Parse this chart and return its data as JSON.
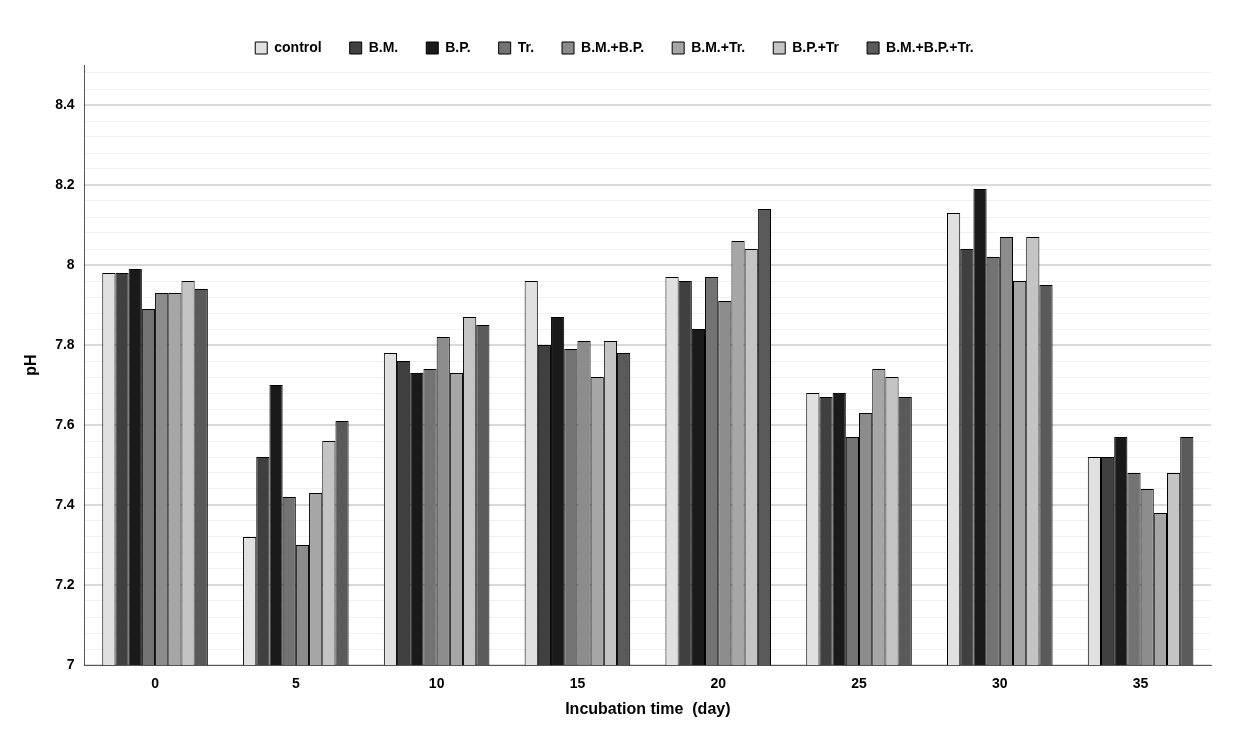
{
  "chart_data": {
    "type": "bar",
    "xlabel": "Incubation time  (day)",
    "ylabel": "pH",
    "categories": [
      "0",
      "5",
      "10",
      "15",
      "20",
      "25",
      "30",
      "35"
    ],
    "series": [
      {
        "name": "control",
        "color": "#e0e0e0",
        "values": [
          7.98,
          7.32,
          7.78,
          7.96,
          7.97,
          7.68,
          8.13,
          7.52
        ]
      },
      {
        "name": "B.M.",
        "color": "#404040",
        "values": [
          7.98,
          7.52,
          7.76,
          7.8,
          7.96,
          7.67,
          8.04,
          7.52
        ]
      },
      {
        "name": "B.P.",
        "color": "#1a1a1a",
        "values": [
          7.99,
          7.7,
          7.73,
          7.87,
          7.84,
          7.68,
          8.19,
          7.57
        ]
      },
      {
        "name": "Tr.",
        "color": "#737373",
        "values": [
          7.89,
          7.42,
          7.74,
          7.79,
          7.97,
          7.57,
          8.02,
          7.48
        ]
      },
      {
        "name": "B.M.+B.P.",
        "color": "#8c8c8c",
        "values": [
          7.93,
          7.3,
          7.82,
          7.81,
          7.91,
          7.63,
          8.07,
          7.44
        ]
      },
      {
        "name": "B.M.+Tr.",
        "color": "#a6a6a6",
        "values": [
          7.93,
          7.43,
          7.73,
          7.72,
          8.06,
          7.74,
          7.96,
          7.38
        ]
      },
      {
        "name": "B.P.+Tr",
        "color": "#c4c4c4",
        "values": [
          7.96,
          7.56,
          7.87,
          7.81,
          8.04,
          7.72,
          8.07,
          7.48
        ]
      },
      {
        "name": "B.M.+B.P.+Tr.",
        "color": "#5a5a5a",
        "values": [
          7.94,
          7.61,
          7.85,
          7.78,
          8.14,
          7.67,
          7.95,
          7.57
        ]
      }
    ],
    "ylim": [
      7,
      8.5
    ],
    "yticks": [
      7,
      {
        "value": 7.04,
        "label": null
      },
      {
        "value": 7.08,
        "label": null
      },
      {
        "value": 7.12,
        "label": null
      },
      {
        "value": 7.16,
        "label": null
      },
      7.2,
      {
        "value": 7.24,
        "label": null
      },
      {
        "value": 7.28,
        "label": null
      },
      {
        "value": 7.32,
        "label": null
      },
      {
        "value": 7.36,
        "label": null
      },
      7.4,
      {
        "value": 7.44,
        "label": null
      },
      {
        "value": 7.48,
        "label": null
      },
      {
        "value": 7.52,
        "label": null
      },
      {
        "value": 7.56,
        "label": null
      },
      7.6,
      {
        "value": 7.64,
        "label": null
      },
      {
        "value": 7.68,
        "label": null
      },
      {
        "value": 7.72,
        "label": null
      },
      {
        "value": 7.76,
        "label": null
      },
      7.8,
      {
        "value": 7.84,
        "label": null
      },
      {
        "value": 7.88,
        "label": null
      },
      {
        "value": 7.92,
        "label": null
      },
      {
        "value": 7.96,
        "label": null
      },
      8,
      {
        "value": 8.04,
        "label": null
      },
      {
        "value": 8.08,
        "label": null
      },
      {
        "value": 8.12,
        "label": null
      },
      {
        "value": 8.16,
        "label": null
      },
      8.2,
      {
        "value": 8.24,
        "label": null
      },
      {
        "value": 8.28,
        "label": null
      },
      {
        "value": 8.32,
        "label": null
      },
      {
        "value": 8.36,
        "label": null
      },
      8.4,
      {
        "value": 8.44,
        "label": null
      },
      {
        "value": 8.48,
        "label": null
      }
    ],
    "grid": "y",
    "legend": "top"
  }
}
